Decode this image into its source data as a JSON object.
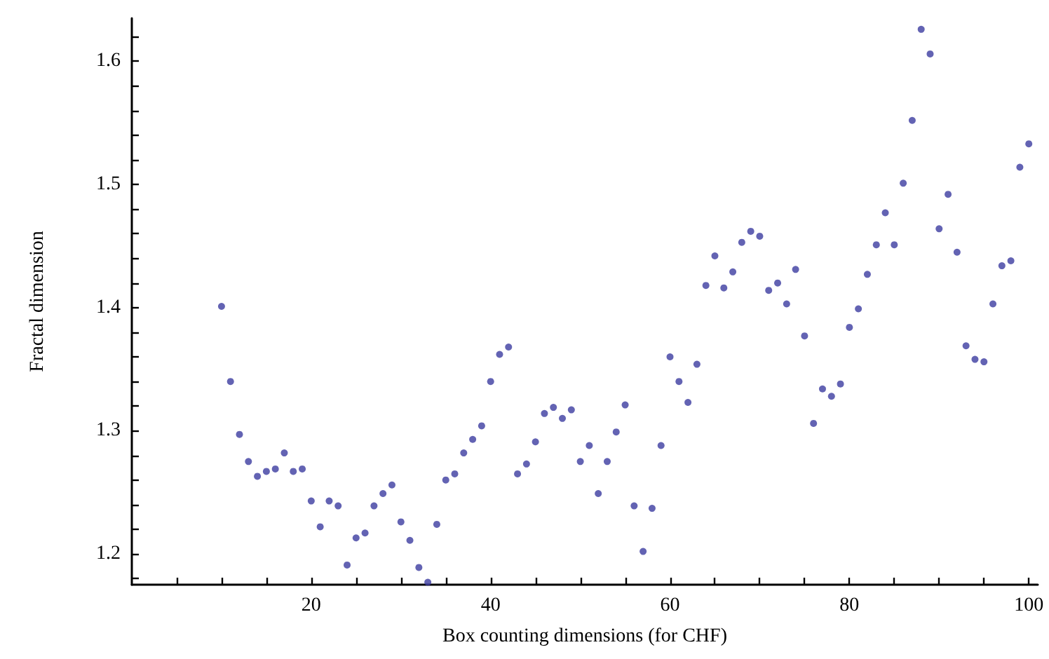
{
  "chart_data": {
    "type": "scatter",
    "xlabel": "Box counting dimensions (for CHF)",
    "ylabel": "Fractal dimension",
    "marker": "circle",
    "xlim": [
      0,
      101
    ],
    "ylim": [
      1.175,
      1.635
    ],
    "xticks": [
      {
        "value": 5,
        "label": null
      },
      {
        "value": 10,
        "label": null
      },
      {
        "value": 15,
        "label": null
      },
      20,
      {
        "value": 25,
        "label": null
      },
      {
        "value": 30,
        "label": null
      },
      {
        "value": 35,
        "label": null
      },
      40,
      {
        "value": 45,
        "label": null
      },
      {
        "value": 50,
        "label": null
      },
      {
        "value": 55,
        "label": null
      },
      60,
      {
        "value": 65,
        "label": null
      },
      {
        "value": 70,
        "label": null
      },
      {
        "value": 75,
        "label": null
      },
      80,
      {
        "value": 85,
        "label": null
      },
      {
        "value": 90,
        "label": null
      },
      {
        "value": 95,
        "label": null
      },
      100
    ],
    "yticks": [
      {
        "value": 1.18,
        "label": null
      },
      1.2,
      {
        "value": 1.22,
        "label": null
      },
      {
        "value": 1.24,
        "label": null
      },
      {
        "value": 1.26,
        "label": null
      },
      {
        "value": 1.28,
        "label": null
      },
      1.3,
      {
        "value": 1.32,
        "label": null
      },
      {
        "value": 1.34,
        "label": null
      },
      {
        "value": 1.36,
        "label": null
      },
      {
        "value": 1.38,
        "label": null
      },
      1.4,
      {
        "value": 1.42,
        "label": null
      },
      {
        "value": 1.44,
        "label": null
      },
      {
        "value": 1.46,
        "label": null
      },
      {
        "value": 1.48,
        "label": null
      },
      1.5,
      {
        "value": 1.52,
        "label": null
      },
      {
        "value": 1.54,
        "label": null
      },
      {
        "value": 1.56,
        "label": null
      },
      {
        "value": 1.58,
        "label": null
      },
      1.6,
      {
        "value": 1.62,
        "label": null
      }
    ],
    "x": [
      10,
      11,
      12,
      13,
      14,
      15,
      16,
      17,
      18,
      19,
      20,
      21,
      22,
      23,
      24,
      25,
      26,
      27,
      28,
      29,
      30,
      31,
      32,
      33,
      34,
      35,
      36,
      37,
      38,
      39,
      40,
      41,
      42,
      43,
      44,
      45,
      46,
      47,
      48,
      49,
      50,
      51,
      52,
      53,
      54,
      55,
      56,
      57,
      58,
      59,
      60,
      61,
      62,
      63,
      64,
      65,
      66,
      67,
      68,
      69,
      70,
      71,
      72,
      73,
      74,
      75,
      76,
      77,
      78,
      79,
      80,
      81,
      82,
      83,
      84,
      85,
      86,
      87,
      88,
      89,
      90,
      91,
      92,
      93,
      94,
      95,
      96,
      97,
      98,
      99,
      100
    ],
    "series": [
      {
        "color": "#3c3ca0",
        "values": [
          1.401,
          1.34,
          1.297,
          1.275,
          1.263,
          1.267,
          1.269,
          1.282,
          1.267,
          1.269,
          1.243,
          1.222,
          1.243,
          1.239,
          1.191,
          1.213,
          1.217,
          1.239,
          1.249,
          1.256,
          1.226,
          1.211,
          1.189,
          1.177,
          1.224,
          1.26,
          1.265,
          1.282,
          1.293,
          1.304,
          1.34,
          1.362,
          1.368,
          1.265,
          1.273,
          1.291,
          1.314,
          1.319,
          1.31,
          1.317,
          1.275,
          1.288,
          1.249,
          1.275,
          1.299,
          1.321,
          1.239,
          1.202,
          1.237,
          1.288,
          1.36,
          1.34,
          1.323,
          1.354,
          1.418,
          1.442,
          1.416,
          1.429,
          1.453,
          1.462,
          1.458,
          1.414,
          1.42,
          1.403,
          1.431,
          1.377,
          1.306,
          1.334,
          1.328,
          1.338,
          1.384,
          1.399,
          1.427,
          1.451,
          1.477,
          1.451,
          1.501,
          1.552,
          1.626,
          1.606,
          1.464,
          1.492,
          1.445,
          1.369,
          1.358,
          1.356,
          1.403,
          1.434,
          1.438,
          1.514,
          1.533
        ]
      }
    ]
  }
}
